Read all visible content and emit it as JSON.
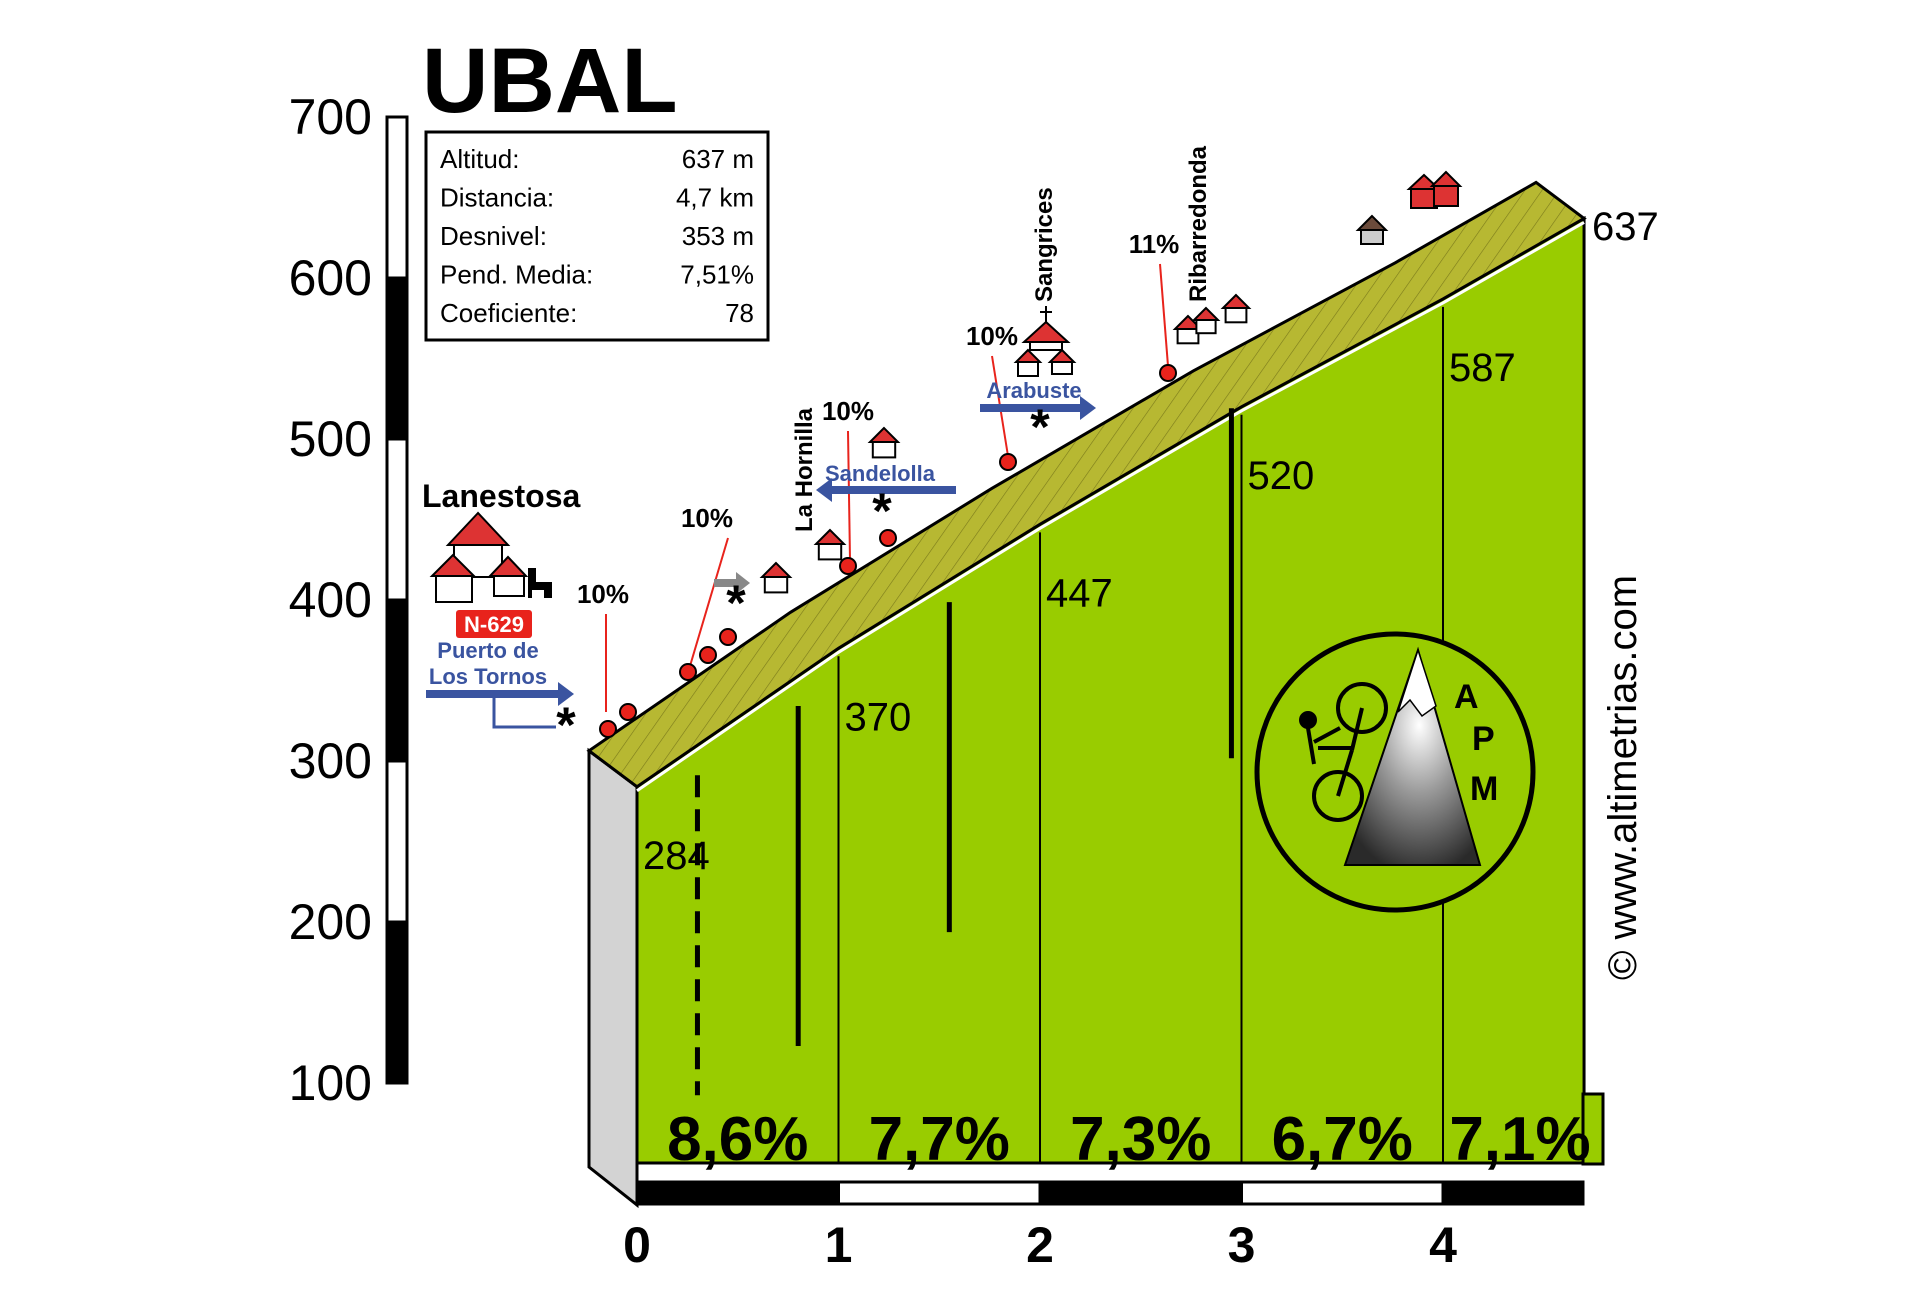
{
  "chart_data": {
    "type": "area",
    "title": "UBAL",
    "stats": [
      {
        "label": "Altitud:",
        "value": "637 m"
      },
      {
        "label": "Distancia:",
        "value": "4,7 km"
      },
      {
        "label": "Desnivel:",
        "value": "353 m"
      },
      {
        "label": "Pend. Media:",
        "value": "7,51%"
      },
      {
        "label": "Coeficiente:",
        "value": "78"
      }
    ],
    "y_ticks": [
      "700",
      "600",
      "500",
      "400",
      "300",
      "200",
      "100"
    ],
    "x_ticks": [
      "0",
      "1",
      "2",
      "3",
      "4"
    ],
    "ylim": [
      100,
      700
    ],
    "xlim": [
      0,
      4.7
    ],
    "profile": {
      "x": [
        0,
        1,
        2,
        3,
        4,
        4.7
      ],
      "y": [
        284,
        370,
        447,
        520,
        587,
        637
      ]
    },
    "km_altitude_labels": [
      "284",
      "370",
      "447",
      "520",
      "587"
    ],
    "end_altitude_label": "637",
    "segment_gradients": [
      "8,6%",
      "7,7%",
      "7,3%",
      "6,7%",
      "7,1%"
    ],
    "peak_gradients": [
      {
        "x": 0.15,
        "label": "10%"
      },
      {
        "x": 0.32,
        "label": "10%"
      },
      {
        "x": 1.0,
        "label": "10%"
      },
      {
        "x": 1.8,
        "label": "10%"
      },
      {
        "x": 2.65,
        "label": "11%"
      }
    ],
    "places": {
      "start": "Lanestosa",
      "road": "N-629",
      "junction_1": "Puerto de Los Tornos",
      "junction_2": "Sandelolla",
      "junction_3": "Arabuste",
      "village_1": "La Hornilla",
      "village_2": "Sangrices",
      "village_3": "Ribarredonda"
    },
    "copyright": "© www.altimetrias.com",
    "logo": "APM",
    "colors": {
      "profile_face": "#99cc00",
      "road_top": "#b7b832",
      "side_face": "#d3d3d3",
      "house_roof": "#dd3333",
      "arrow_blue": "#3a54a0",
      "marker_red": "#e8231c"
    }
  }
}
